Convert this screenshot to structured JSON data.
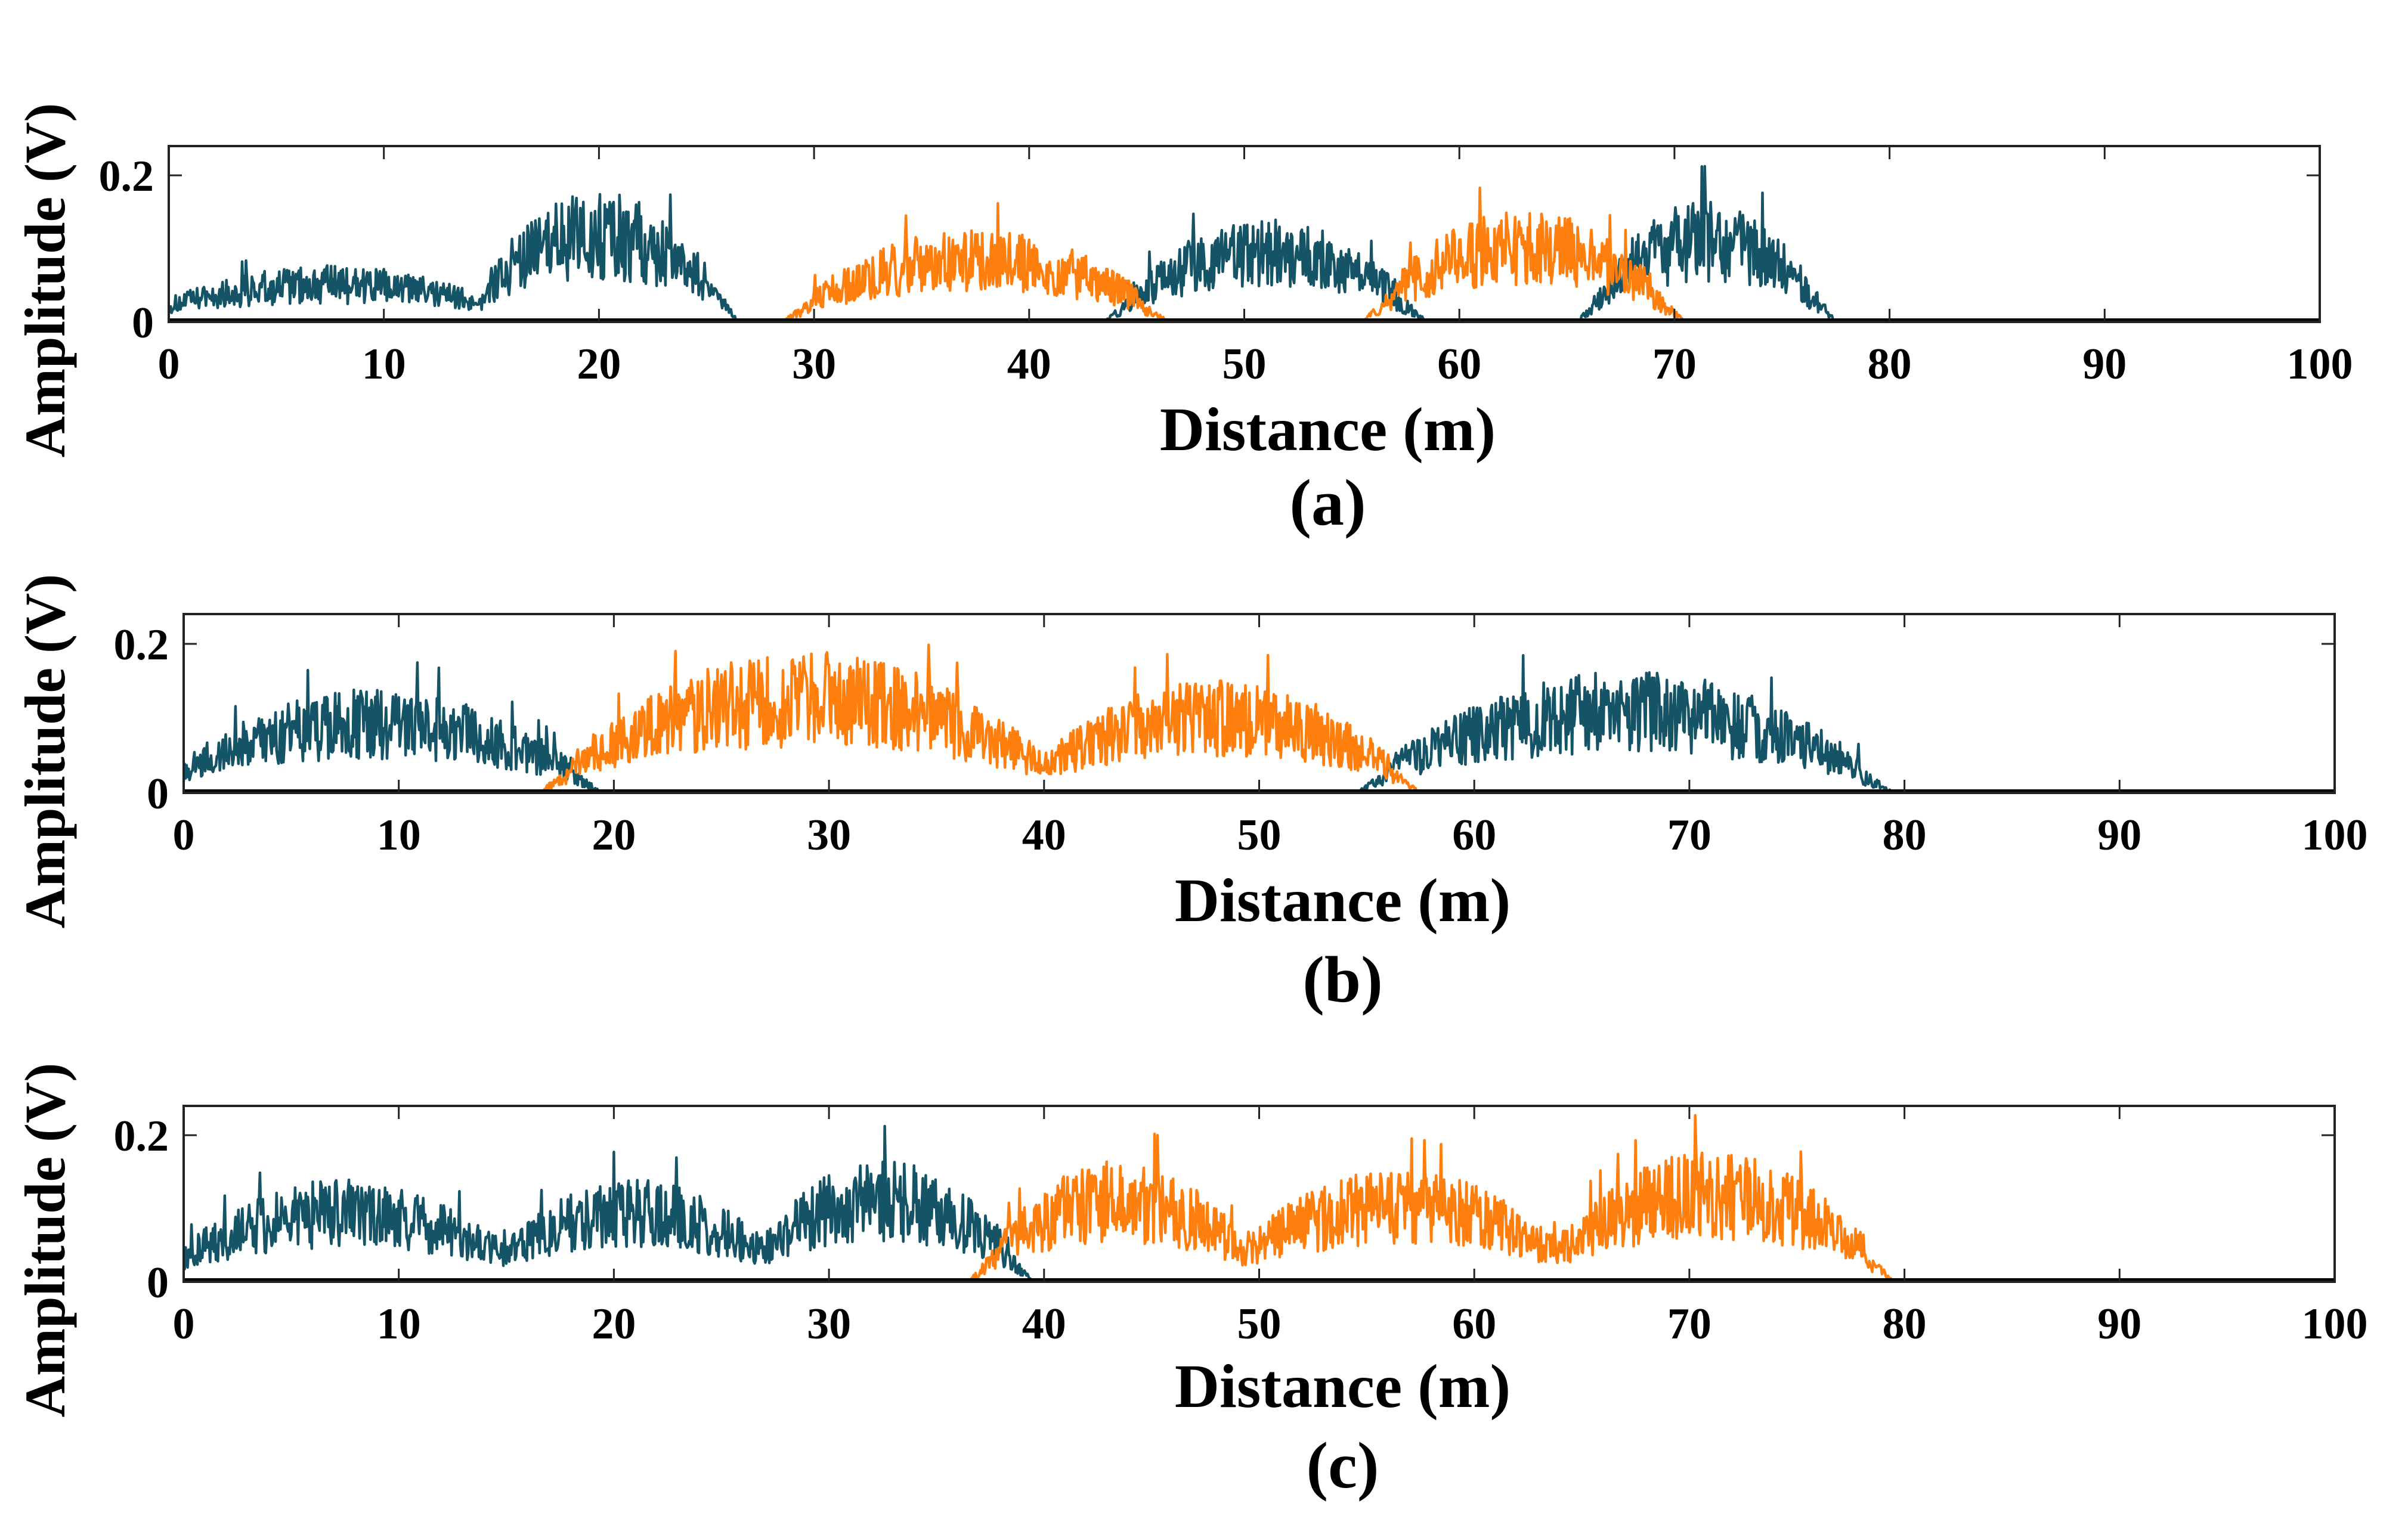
{
  "chart_data": [
    {
      "type": "line",
      "panel_label": "(a)",
      "xlabel": "Distance (m)",
      "ylabel": "Amplitude (V)",
      "xlim": [
        0,
        100
      ],
      "ylim": [
        0,
        0.24
      ],
      "xticks": [
        "0",
        "10",
        "20",
        "30",
        "40",
        "50",
        "60",
        "70",
        "80",
        "90",
        "100"
      ],
      "yticks": [
        "0",
        "0.2"
      ],
      "grid": false,
      "legend": "none",
      "series_colors": [
        "#145466",
        "#ff7f0e"
      ],
      "series": [
        {
          "values_desc": "teal segments",
          "peaks": [
            [
              0,
              15,
              0.05
            ],
            [
              15,
              25,
              0.13
            ],
            [
              45,
              57,
              0.1
            ],
            [
              67,
              76,
              0.12
            ]
          ]
        },
        {
          "values_desc": "orange segments",
          "peaks": [
            [
              30,
              45,
              0.09
            ],
            [
              57,
              69,
              0.11
            ]
          ]
        }
      ]
    },
    {
      "type": "line",
      "panel_label": "(b)",
      "xlabel": "Distance (m)",
      "ylabel": "Amplitude (V)",
      "xlim": [
        0,
        100
      ],
      "ylim": [
        0,
        0.24
      ],
      "xticks": [
        "0",
        "10",
        "20",
        "30",
        "40",
        "50",
        "60",
        "70",
        "80",
        "90",
        "100"
      ],
      "yticks": [
        "0",
        "0.2"
      ],
      "grid": false,
      "legend": "none",
      "series_colors": [
        "#145466",
        "#ff7f0e"
      ],
      "series": [
        {
          "values_desc": "teal segments",
          "peaks": [
            [
              0,
              18,
              0.1
            ],
            [
              56,
              78,
              0.12
            ]
          ]
        },
        {
          "values_desc": "orange segments",
          "peaks": [
            [
              18,
              40,
              0.14
            ],
            [
              40,
              56,
              0.11
            ]
          ]
        }
      ]
    },
    {
      "type": "line",
      "panel_label": "(c)",
      "xlabel": "Distance (m)",
      "ylabel": "Amplitude (V)",
      "xlim": [
        0,
        100
      ],
      "ylim": [
        0,
        0.24
      ],
      "xticks": [
        "0",
        "10",
        "20",
        "30",
        "40",
        "50",
        "60",
        "70",
        "80",
        "90",
        "100"
      ],
      "yticks": [
        "0",
        "0.2"
      ],
      "grid": false,
      "legend": "none",
      "series_colors": [
        "#145466",
        "#ff7f0e"
      ],
      "series": [
        {
          "values_desc": "teal segments",
          "peaks": [
            [
              0,
              15,
              0.1
            ],
            [
              15,
              27,
              0.1
            ],
            [
              27,
              38,
              0.12
            ]
          ]
        },
        {
          "values_desc": "orange segments",
          "peaks": [
            [
              38,
              49,
              0.12
            ],
            [
              49,
              64,
              0.11
            ],
            [
              64,
              78,
              0.13
            ]
          ]
        }
      ]
    }
  ]
}
